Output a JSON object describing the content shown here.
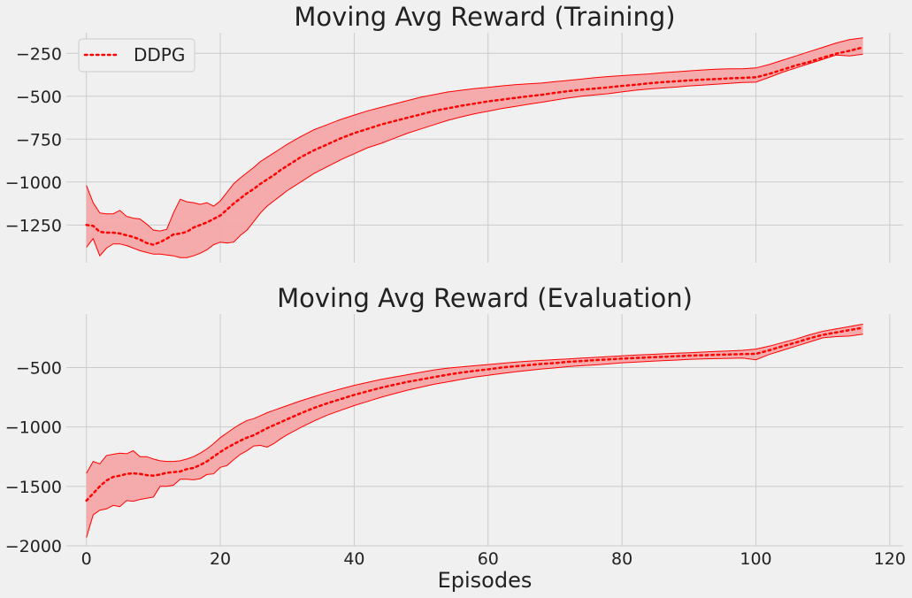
{
  "colors": {
    "background": "#f0f0f0",
    "grid": "#cbcbcb",
    "series": "#ff0000",
    "band_fill": "#f4a6a6"
  },
  "chart_data": [
    {
      "type": "area",
      "title": "Moving Avg Reward (Training)",
      "xlabel": "",
      "ylabel": "",
      "xlim": [
        -3,
        122
      ],
      "ylim": [
        -1470,
        -130
      ],
      "x_ticks": [
        0,
        20,
        40,
        60,
        80,
        100,
        120
      ],
      "x_tick_labels_visible": false,
      "y_ticks": [
        -1250,
        -1000,
        -750,
        -500,
        -250
      ],
      "y_tick_labels": [
        "−1250",
        "−1000",
        "−750",
        "−500",
        "−250"
      ],
      "grid": true,
      "legend": {
        "placement": "top-left",
        "entries": [
          "DDPG"
        ]
      },
      "x": [
        0,
        1,
        2,
        3,
        4,
        5,
        6,
        7,
        8,
        9,
        10,
        11,
        12,
        13,
        14,
        15,
        16,
        17,
        18,
        19,
        20,
        21,
        22,
        23,
        24,
        25,
        26,
        27,
        28,
        29,
        30,
        32,
        34,
        36,
        38,
        40,
        42,
        44,
        46,
        48,
        50,
        52,
        54,
        56,
        58,
        60,
        62,
        64,
        66,
        68,
        70,
        72,
        74,
        76,
        78,
        80,
        82,
        84,
        86,
        88,
        90,
        92,
        94,
        96,
        98,
        100,
        102,
        104,
        106,
        108,
        110,
        112,
        114,
        116
      ],
      "series": [
        {
          "name": "DDPG",
          "style": "dotted",
          "mean": [
            -1250,
            -1255,
            -1290,
            -1295,
            -1295,
            -1300,
            -1310,
            -1320,
            -1335,
            -1355,
            -1365,
            -1350,
            -1330,
            -1305,
            -1300,
            -1290,
            -1265,
            -1250,
            -1235,
            -1215,
            -1195,
            -1160,
            -1125,
            -1095,
            -1065,
            -1040,
            -1010,
            -985,
            -960,
            -930,
            -905,
            -855,
            -815,
            -780,
            -745,
            -715,
            -690,
            -665,
            -645,
            -625,
            -605,
            -585,
            -570,
            -555,
            -543,
            -530,
            -520,
            -510,
            -500,
            -492,
            -480,
            -470,
            -462,
            -455,
            -448,
            -440,
            -433,
            -425,
            -418,
            -413,
            -408,
            -403,
            -400,
            -396,
            -393,
            -390,
            -370,
            -345,
            -320,
            -300,
            -275,
            -252,
            -235,
            -215
          ],
          "upper": [
            -1020,
            -1120,
            -1180,
            -1185,
            -1185,
            -1165,
            -1200,
            -1210,
            -1215,
            -1245,
            -1280,
            -1285,
            -1275,
            -1180,
            -1100,
            -1115,
            -1120,
            -1130,
            -1120,
            -1140,
            -1110,
            -1060,
            -1010,
            -975,
            -945,
            -915,
            -880,
            -855,
            -830,
            -805,
            -780,
            -735,
            -695,
            -665,
            -635,
            -610,
            -585,
            -565,
            -545,
            -525,
            -505,
            -490,
            -475,
            -465,
            -455,
            -448,
            -440,
            -433,
            -428,
            -423,
            -415,
            -408,
            -400,
            -392,
            -385,
            -380,
            -375,
            -370,
            -363,
            -358,
            -352,
            -347,
            -343,
            -340,
            -340,
            -335,
            -315,
            -290,
            -265,
            -240,
            -215,
            -190,
            -170,
            -160
          ],
          "lower": [
            -1380,
            -1330,
            -1430,
            -1385,
            -1360,
            -1360,
            -1370,
            -1385,
            -1400,
            -1410,
            -1420,
            -1420,
            -1425,
            -1430,
            -1440,
            -1440,
            -1430,
            -1415,
            -1395,
            -1365,
            -1350,
            -1355,
            -1350,
            -1310,
            -1280,
            -1230,
            -1180,
            -1140,
            -1110,
            -1080,
            -1050,
            -1000,
            -950,
            -910,
            -870,
            -835,
            -800,
            -775,
            -745,
            -715,
            -690,
            -665,
            -640,
            -620,
            -602,
            -587,
            -572,
            -560,
            -547,
            -535,
            -522,
            -510,
            -500,
            -492,
            -485,
            -475,
            -465,
            -458,
            -452,
            -447,
            -440,
            -435,
            -430,
            -425,
            -420,
            -418,
            -390,
            -360,
            -335,
            -310,
            -285,
            -260,
            -265,
            -255
          ]
        }
      ]
    },
    {
      "type": "area",
      "title": "Moving Avg Reward (Evaluation)",
      "xlabel": "Episodes",
      "ylabel": "",
      "xlim": [
        -3,
        122
      ],
      "ylim": [
        -2000,
        -50
      ],
      "x_ticks": [
        0,
        20,
        40,
        60,
        80,
        100,
        120
      ],
      "x_tick_labels": [
        "0",
        "20",
        "40",
        "60",
        "80",
        "100",
        "120"
      ],
      "y_ticks": [
        -2000,
        -1500,
        -1000,
        -500
      ],
      "y_tick_labels": [
        "−2000",
        "−1500",
        "−1000",
        "−500"
      ],
      "grid": true,
      "x": [
        0,
        1,
        2,
        3,
        4,
        5,
        6,
        7,
        8,
        9,
        10,
        11,
        12,
        13,
        14,
        15,
        16,
        17,
        18,
        19,
        20,
        21,
        22,
        23,
        24,
        25,
        26,
        27,
        28,
        29,
        30,
        32,
        34,
        36,
        38,
        40,
        42,
        44,
        46,
        48,
        50,
        52,
        54,
        56,
        58,
        60,
        62,
        64,
        66,
        68,
        70,
        72,
        74,
        76,
        78,
        80,
        82,
        84,
        86,
        88,
        90,
        92,
        94,
        96,
        98,
        100,
        102,
        104,
        106,
        108,
        110,
        112,
        114,
        116
      ],
      "series": [
        {
          "name": "DDPG",
          "style": "dotted",
          "mean": [
            -1620,
            -1560,
            -1500,
            -1450,
            -1420,
            -1410,
            -1395,
            -1390,
            -1395,
            -1405,
            -1410,
            -1400,
            -1385,
            -1380,
            -1375,
            -1355,
            -1345,
            -1320,
            -1290,
            -1250,
            -1210,
            -1175,
            -1145,
            -1115,
            -1090,
            -1070,
            -1040,
            -1010,
            -985,
            -960,
            -935,
            -885,
            -840,
            -800,
            -765,
            -730,
            -700,
            -670,
            -645,
            -620,
            -600,
            -580,
            -560,
            -543,
            -528,
            -515,
            -500,
            -490,
            -480,
            -470,
            -462,
            -452,
            -445,
            -438,
            -432,
            -425,
            -420,
            -415,
            -410,
            -405,
            -400,
            -397,
            -393,
            -390,
            -387,
            -385,
            -355,
            -320,
            -290,
            -255,
            -225,
            -205,
            -185,
            -165
          ],
          "upper": [
            -1390,
            -1290,
            -1310,
            -1240,
            -1230,
            -1220,
            -1225,
            -1200,
            -1250,
            -1250,
            -1270,
            -1285,
            -1290,
            -1290,
            -1285,
            -1270,
            -1250,
            -1220,
            -1185,
            -1140,
            -1090,
            -1050,
            -1010,
            -975,
            -945,
            -930,
            -905,
            -880,
            -860,
            -840,
            -820,
            -780,
            -745,
            -710,
            -680,
            -650,
            -625,
            -600,
            -580,
            -560,
            -540,
            -520,
            -505,
            -495,
            -485,
            -475,
            -465,
            -455,
            -447,
            -440,
            -433,
            -427,
            -420,
            -415,
            -408,
            -402,
            -395,
            -390,
            -385,
            -380,
            -375,
            -370,
            -365,
            -360,
            -355,
            -345,
            -320,
            -290,
            -260,
            -225,
            -195,
            -175,
            -155,
            -135
          ],
          "lower": [
            -1930,
            -1740,
            -1700,
            -1690,
            -1660,
            -1670,
            -1620,
            -1625,
            -1610,
            -1600,
            -1590,
            -1500,
            -1500,
            -1490,
            -1440,
            -1440,
            -1445,
            -1435,
            -1400,
            -1395,
            -1340,
            -1325,
            -1275,
            -1230,
            -1200,
            -1160,
            -1155,
            -1170,
            -1140,
            -1100,
            -1065,
            -1005,
            -950,
            -900,
            -860,
            -820,
            -785,
            -750,
            -720,
            -690,
            -665,
            -640,
            -620,
            -600,
            -580,
            -565,
            -550,
            -537,
            -525,
            -512,
            -503,
            -492,
            -485,
            -478,
            -470,
            -460,
            -455,
            -448,
            -442,
            -438,
            -432,
            -428,
            -425,
            -423,
            -420,
            -435,
            -390,
            -355,
            -320,
            -285,
            -250,
            -240,
            -235,
            -220
          ]
        }
      ]
    }
  ]
}
